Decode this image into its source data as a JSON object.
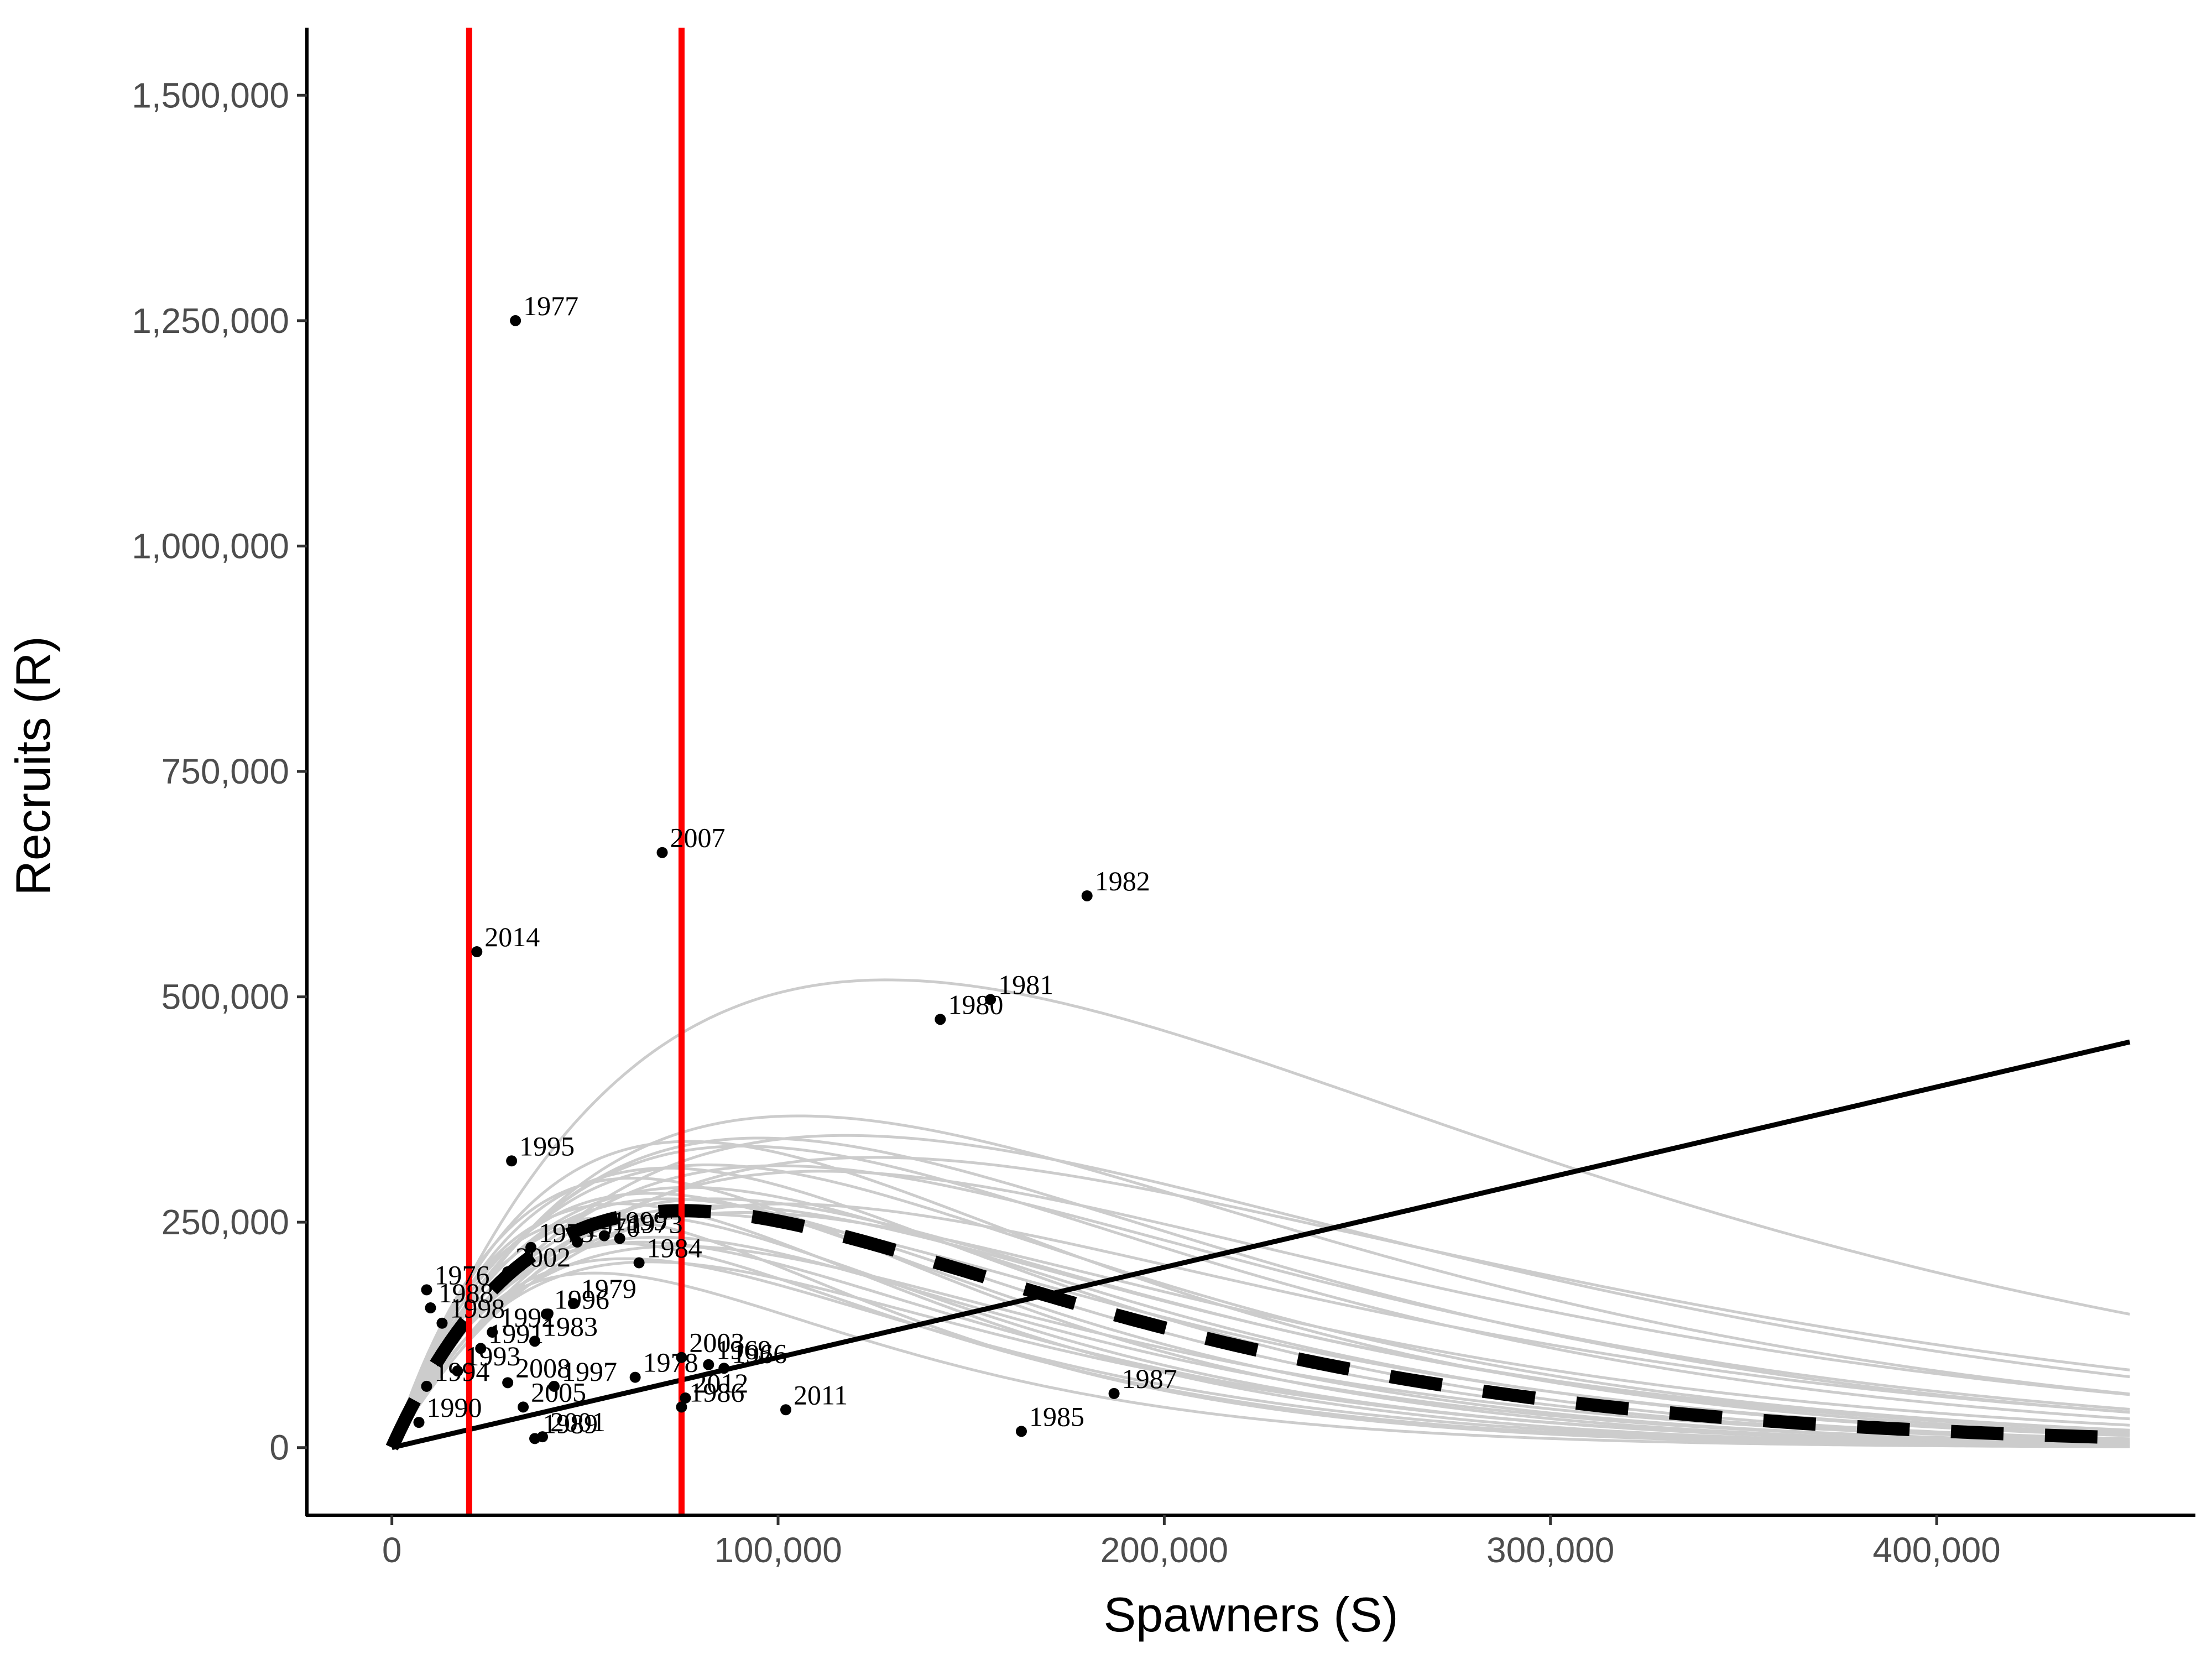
{
  "chart_data": {
    "type": "scatter",
    "title": "",
    "xlabel": "Spawners (S)",
    "ylabel": "Recruits (R)",
    "xlim": [
      -22000,
      467000
    ],
    "ylim": [
      -75000,
      1575000
    ],
    "x_ticks": [
      0,
      100000,
      200000,
      300000,
      400000
    ],
    "x_tick_labels": [
      "0",
      "100,000",
      "200,000",
      "300,000",
      "400,000"
    ],
    "y_ticks": [
      0,
      250000,
      500000,
      750000,
      1000000,
      1250000,
      1500000
    ],
    "y_tick_labels": [
      "0",
      "250,000",
      "500,000",
      "750,000",
      "1,000,000",
      "1,250,000",
      "1,500,000"
    ],
    "grid": false,
    "legend": "none",
    "points": [
      {
        "label": "1977",
        "x": 32000,
        "y": 1250000
      },
      {
        "label": "2007",
        "x": 70000,
        "y": 660000
      },
      {
        "label": "1982",
        "x": 180000,
        "y": 612000
      },
      {
        "label": "2014",
        "x": 22000,
        "y": 550000
      },
      {
        "label": "1981",
        "x": 155000,
        "y": 497000
      },
      {
        "label": "1980",
        "x": 142000,
        "y": 475000
      },
      {
        "label": "1995",
        "x": 31000,
        "y": 318000
      },
      {
        "label": "1999",
        "x": 55000,
        "y": 235000
      },
      {
        "label": "1973",
        "x": 59000,
        "y": 232000
      },
      {
        "label": "1970",
        "x": 48000,
        "y": 228000
      },
      {
        "label": "1984",
        "x": 64000,
        "y": 205000
      },
      {
        "label": "1975",
        "x": 36000,
        "y": 222000
      },
      {
        "label": "2002",
        "x": 30000,
        "y": 195000
      },
      {
        "label": "1976",
        "x": 9000,
        "y": 175000
      },
      {
        "label": "1988",
        "x": 10000,
        "y": 155000
      },
      {
        "label": "1979",
        "x": 47000,
        "y": 160000
      },
      {
        "label": "1996",
        "x": 40000,
        "y": 148000
      },
      {
        "label": "1998",
        "x": 13000,
        "y": 138000
      },
      {
        "label": "1992",
        "x": 26000,
        "y": 128000
      },
      {
        "label": "1983",
        "x": 37000,
        "y": 118000
      },
      {
        "label": "1991",
        "x": 23000,
        "y": 110000
      },
      {
        "label": "2003",
        "x": 75000,
        "y": 100000
      },
      {
        "label": "1969",
        "x": 82000,
        "y": 92000
      },
      {
        "label": "1966",
        "x": 86000,
        "y": 88000
      },
      {
        "label": "1978",
        "x": 63000,
        "y": 78000
      },
      {
        "label": "1993",
        "x": 17000,
        "y": 85000
      },
      {
        "label": "2008",
        "x": 30000,
        "y": 72000
      },
      {
        "label": "1997",
        "x": 42000,
        "y": 68000
      },
      {
        "label": "1994",
        "x": 9000,
        "y": 68000
      },
      {
        "label": "1987",
        "x": 187000,
        "y": 60000
      },
      {
        "label": "2012",
        "x": 76000,
        "y": 55000
      },
      {
        "label": "2011",
        "x": 102000,
        "y": 42000
      },
      {
        "label": "1986",
        "x": 75000,
        "y": 45000
      },
      {
        "label": "2005",
        "x": 34000,
        "y": 45000
      },
      {
        "label": "1990",
        "x": 7000,
        "y": 28000
      },
      {
        "label": "1985",
        "x": 163000,
        "y": 18000
      },
      {
        "label": "2001",
        "x": 39000,
        "y": 12000
      },
      {
        "label": "1989",
        "x": 37000,
        "y": 10000
      }
    ],
    "vertical_lines": [
      {
        "x": 20000,
        "color": "#ff0000"
      },
      {
        "x": 75000,
        "color": "#ff0000"
      }
    ],
    "replacement_line": {
      "x": [
        0,
        450000
      ],
      "y": [
        0,
        450000
      ],
      "color": "#000000"
    },
    "median_curve": {
      "model": "ricker",
      "a": 9.5,
      "b": 1.33e-05,
      "x_range": [
        0,
        450000
      ],
      "style": "dashed",
      "color": "#000000"
    },
    "posterior_curves": {
      "model": "ricker",
      "color": "#cccccc",
      "params": [
        [
          11.0,
          7.8e-06
        ],
        [
          9.5,
          9.5e-06
        ],
        [
          8.0,
          8.5e-06
        ],
        [
          12.0,
          1.3e-05
        ],
        [
          10.0,
          1.1e-05
        ],
        [
          7.0,
          8e-06
        ],
        [
          9.0,
          1.2e-05
        ],
        [
          13.0,
          1.6e-05
        ],
        [
          8.5,
          1e-05
        ],
        [
          10.5,
          1.4e-05
        ],
        [
          7.5,
          9e-06
        ],
        [
          11.5,
          1.5e-05
        ],
        [
          9.8,
          1.05e-05
        ],
        [
          8.8,
          1.25e-05
        ],
        [
          12.5,
          1.7e-05
        ],
        [
          10.2,
          1.3e-05
        ],
        [
          7.8,
          1.1e-05
        ],
        [
          9.2,
          1.45e-05
        ],
        [
          11.2,
          1.6e-05
        ],
        [
          8.2,
          1.35e-05
        ],
        [
          10.8,
          1.75e-05
        ],
        [
          9.6,
          1.55e-05
        ],
        [
          12.8,
          1.85e-05
        ],
        [
          8.6,
          1.18e-05
        ],
        [
          10.4,
          1.22e-05
        ],
        [
          7.2,
          9.8e-06
        ],
        [
          11.8,
          1.4e-05
        ],
        [
          9.4,
          1.65e-05
        ],
        [
          10.0,
          1.9e-05
        ],
        [
          8.4,
          1.5e-05
        ]
      ]
    }
  }
}
